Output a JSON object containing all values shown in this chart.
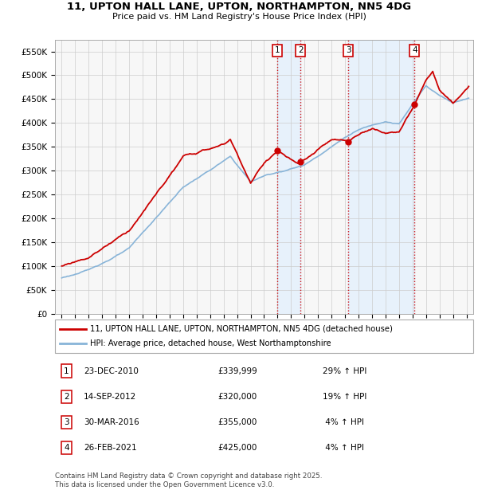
{
  "title_line1": "11, UPTON HALL LANE, UPTON, NORTHAMPTON, NN5 4DG",
  "title_line2": "Price paid vs. HM Land Registry's House Price Index (HPI)",
  "background_color": "#ffffff",
  "grid_color": "#cccccc",
  "hpi_color": "#88b4d8",
  "price_color": "#cc0000",
  "vline_color": "#cc0000",
  "shade_color": "#ddeeff",
  "purchases": [
    {
      "label": "1",
      "date_x": 2010.97,
      "price": 339999
    },
    {
      "label": "2",
      "date_x": 2012.71,
      "price": 320000
    },
    {
      "label": "3",
      "date_x": 2016.24,
      "price": 355000
    },
    {
      "label": "4",
      "date_x": 2021.15,
      "price": 425000
    }
  ],
  "table_rows": [
    {
      "num": "1",
      "date": "23-DEC-2010",
      "price": "£339,999",
      "hpi": "29% ↑ HPI"
    },
    {
      "num": "2",
      "date": "14-SEP-2012",
      "price": "£320,000",
      "hpi": "19% ↑ HPI"
    },
    {
      "num": "3",
      "date": "30-MAR-2016",
      "price": "£355,000",
      "hpi": " 4% ↑ HPI"
    },
    {
      "num": "4",
      "date": "26-FEB-2021",
      "price": "£425,000",
      "hpi": " 4% ↑ HPI"
    }
  ],
  "legend_label_red": "11, UPTON HALL LANE, UPTON, NORTHAMPTON, NN5 4DG (detached house)",
  "legend_label_blue": "HPI: Average price, detached house, West Northamptonshire",
  "footer": "Contains HM Land Registry data © Crown copyright and database right 2025.\nThis data is licensed under the Open Government Licence v3.0.",
  "ylim": [
    0,
    575000
  ],
  "yticks": [
    0,
    50000,
    100000,
    150000,
    200000,
    250000,
    300000,
    350000,
    400000,
    450000,
    500000,
    550000
  ],
  "xlim_start": 1994.5,
  "xlim_end": 2025.5,
  "xticks": [
    1995,
    1996,
    1997,
    1998,
    1999,
    2000,
    2001,
    2002,
    2003,
    2004,
    2005,
    2006,
    2007,
    2008,
    2009,
    2010,
    2011,
    2012,
    2013,
    2014,
    2015,
    2016,
    2017,
    2018,
    2019,
    2020,
    2021,
    2022,
    2023,
    2024,
    2025
  ]
}
